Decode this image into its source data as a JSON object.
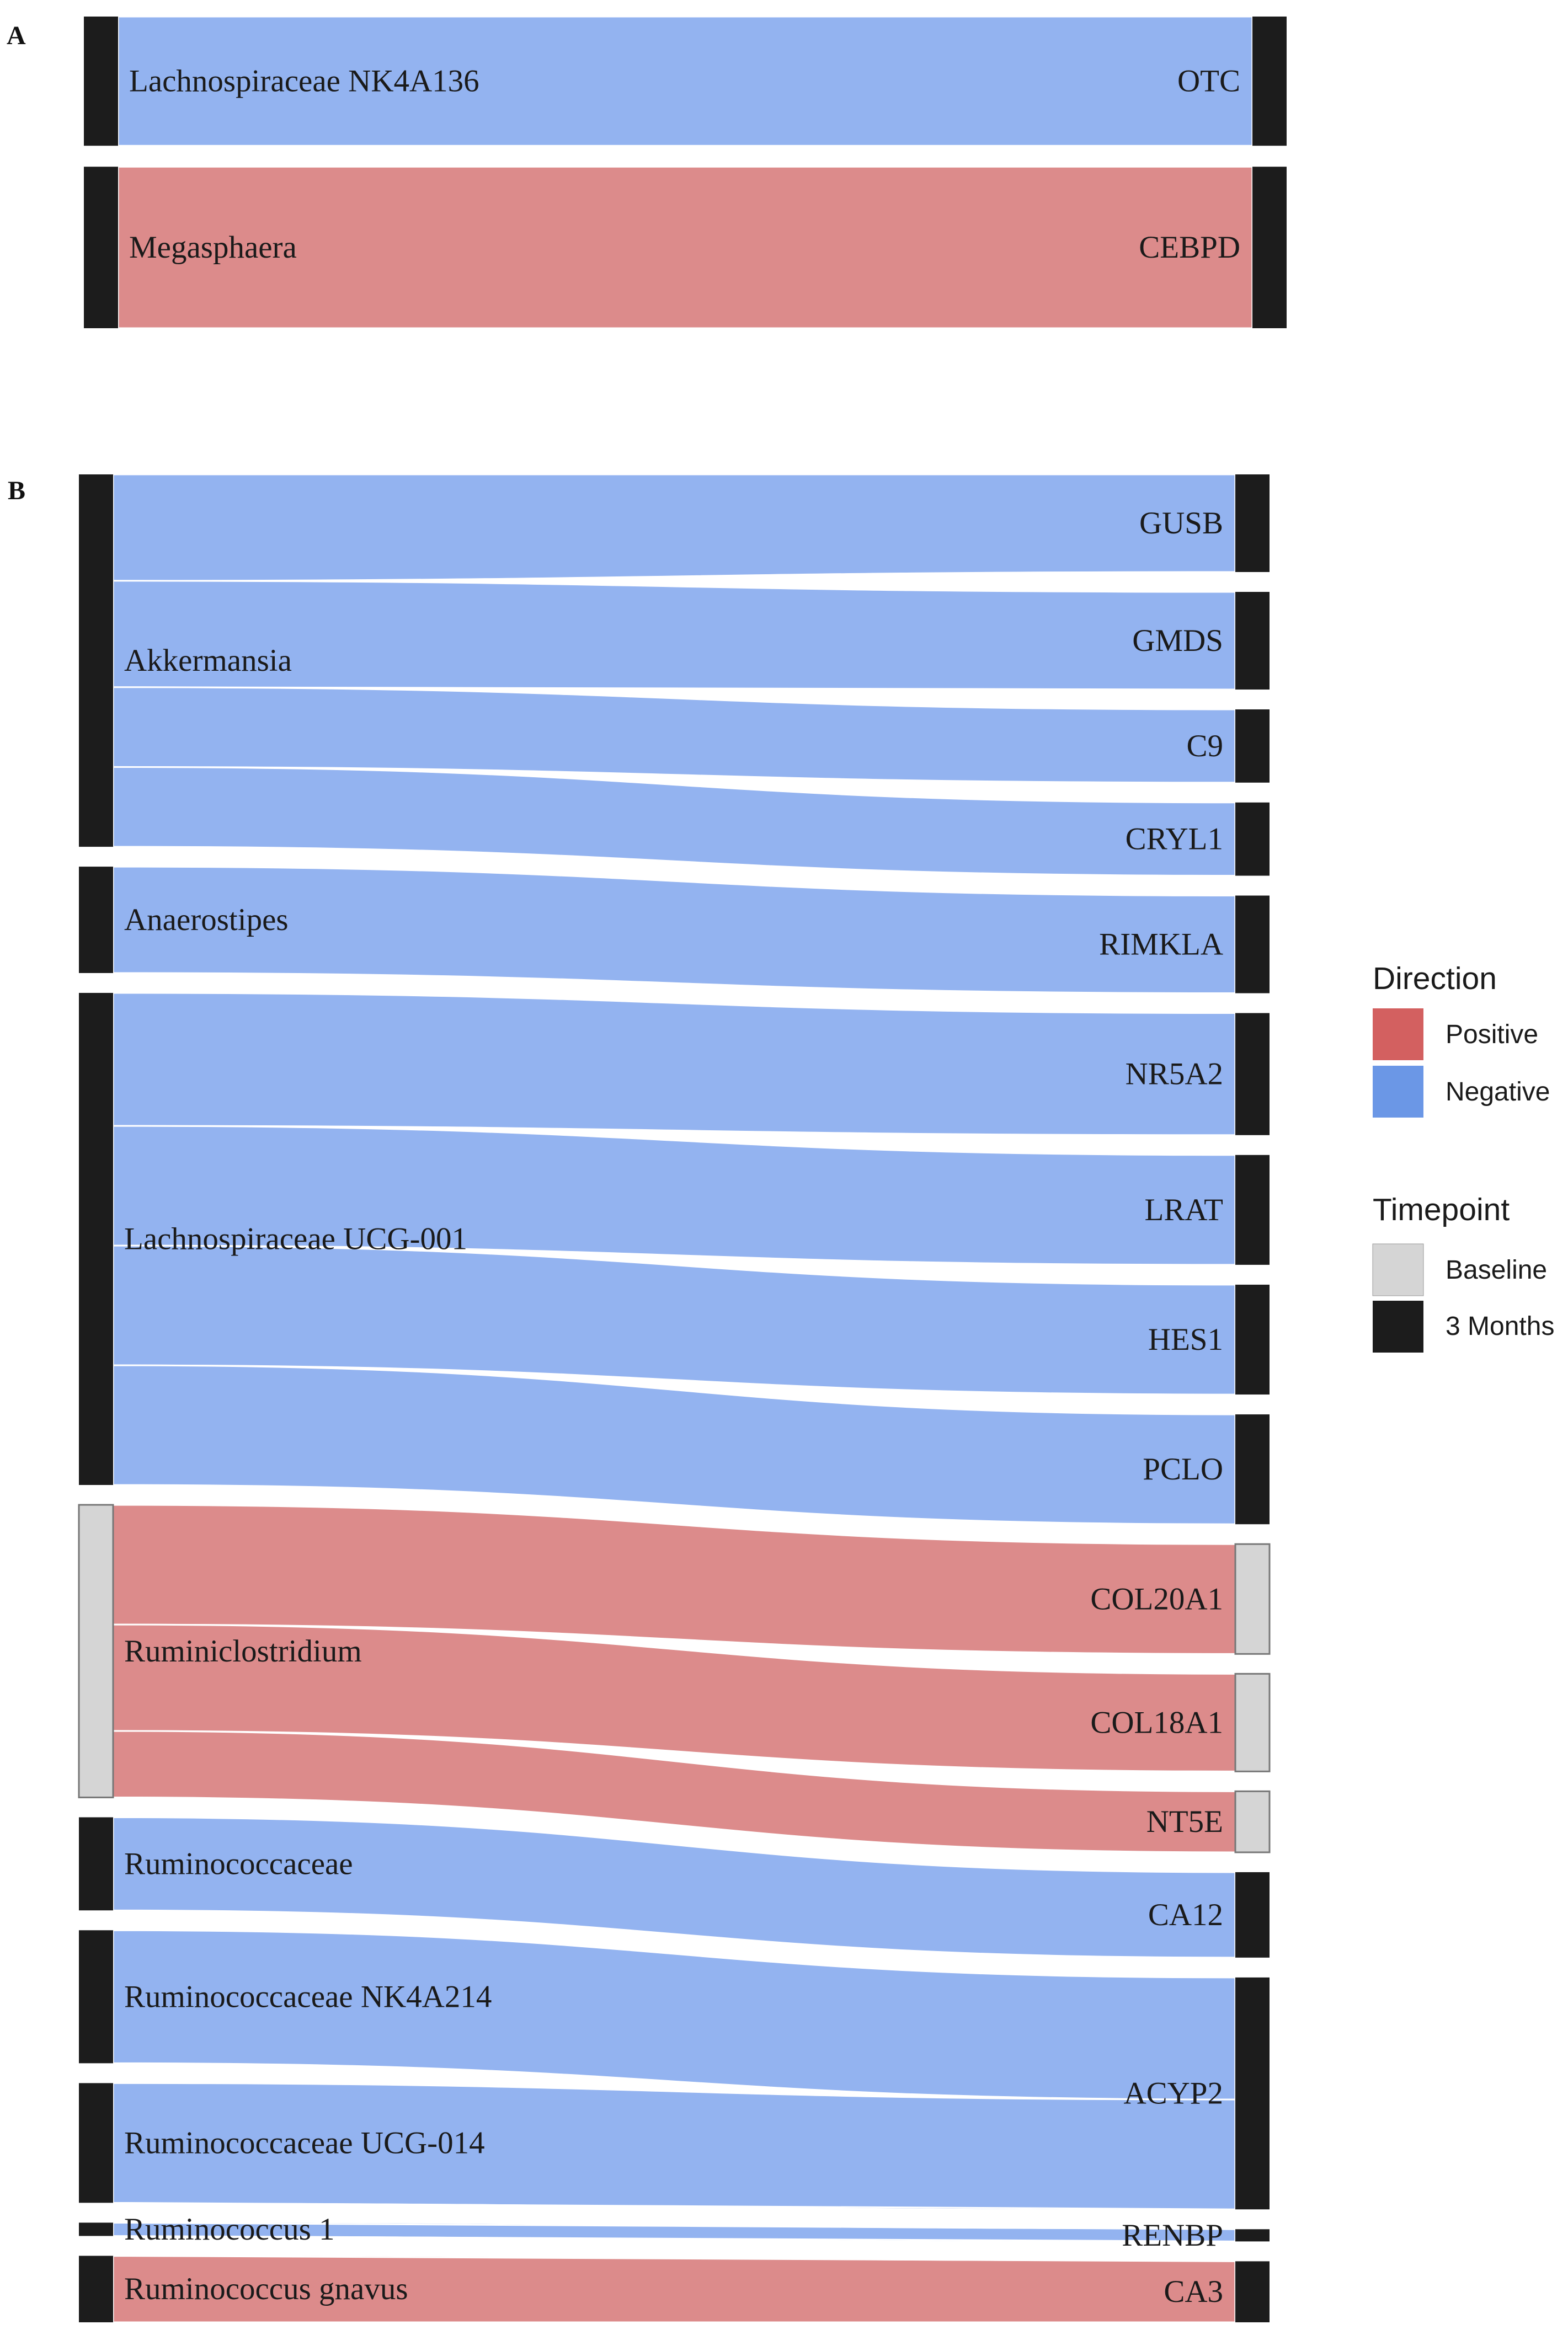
{
  "colors": {
    "positive_flow": "#dc8b8b",
    "negative_flow": "#93b3f0",
    "positive_key": "#d36060",
    "negative_key": "#6b97e6",
    "baseline": "#d5d5d5",
    "three_months": "#1c1c1c"
  },
  "legend": {
    "direction_title": "Direction",
    "positive": "Positive",
    "negative": "Negative",
    "timepoint_title": "Timepoint",
    "baseline": "Baseline",
    "three_months": "3 Months"
  },
  "chart_data": [
    {
      "type": "sankey",
      "panel": "A",
      "left_nodes": [
        {
          "id": "lnk",
          "label": "Lachnospiraceae NK4A136",
          "timepoint": "3 Months"
        },
        {
          "id": "meg",
          "label": "Megasphaera",
          "timepoint": "3 Months"
        }
      ],
      "right_nodes": [
        {
          "id": "otc",
          "label": "OTC",
          "timepoint": "3 Months"
        },
        {
          "id": "cebpd",
          "label": "CEBPD",
          "timepoint": "3 Months"
        }
      ],
      "links": [
        {
          "source": "lnk",
          "target": "otc",
          "direction": "Negative",
          "value": 4
        },
        {
          "source": "meg",
          "target": "cebpd",
          "direction": "Positive",
          "value": 5
        }
      ]
    },
    {
      "type": "sankey",
      "panel": "B",
      "left_nodes": [
        {
          "id": "akk",
          "label": "Akkermansia",
          "timepoint": "3 Months"
        },
        {
          "id": "ana",
          "label": "Anaerostipes",
          "timepoint": "3 Months"
        },
        {
          "id": "lucg",
          "label": "Lachnospiraceae UCG-001",
          "timepoint": "3 Months"
        },
        {
          "id": "rumcl",
          "label": "Ruminiclostridium",
          "timepoint": "Baseline"
        },
        {
          "id": "rum",
          "label": "Ruminococcaceae",
          "timepoint": "3 Months"
        },
        {
          "id": "rnk",
          "label": "Ruminococcaceae NK4A214",
          "timepoint": "3 Months"
        },
        {
          "id": "rucg",
          "label": "Ruminococcaceae UCG-014",
          "timepoint": "3 Months"
        },
        {
          "id": "r1",
          "label": "Ruminococcus 1",
          "timepoint": "3 Months"
        },
        {
          "id": "rg",
          "label": "Ruminococcus gnavus",
          "timepoint": "3 Months"
        }
      ],
      "right_nodes": [
        {
          "id": "gusb",
          "label": "GUSB",
          "timepoint": "3 Months"
        },
        {
          "id": "gmds",
          "label": "GMDS",
          "timepoint": "3 Months"
        },
        {
          "id": "c9",
          "label": "C9",
          "timepoint": "3 Months"
        },
        {
          "id": "cryl1",
          "label": "CRYL1",
          "timepoint": "3 Months"
        },
        {
          "id": "rimkla",
          "label": "RIMKLA",
          "timepoint": "3 Months"
        },
        {
          "id": "nr5a2",
          "label": "NR5A2",
          "timepoint": "3 Months"
        },
        {
          "id": "lrat",
          "label": "LRAT",
          "timepoint": "3 Months"
        },
        {
          "id": "hes1",
          "label": "HES1",
          "timepoint": "3 Months"
        },
        {
          "id": "pclo",
          "label": "PCLO",
          "timepoint": "3 Months"
        },
        {
          "id": "col20a1",
          "label": "COL20A1",
          "timepoint": "Baseline"
        },
        {
          "id": "col18a1",
          "label": "COL18A1",
          "timepoint": "Baseline"
        },
        {
          "id": "nt5e",
          "label": "NT5E",
          "timepoint": "Baseline"
        },
        {
          "id": "ca12",
          "label": "CA12",
          "timepoint": "3 Months"
        },
        {
          "id": "acyp2",
          "label": "ACYP2",
          "timepoint": "3 Months"
        },
        {
          "id": "renbp",
          "label": "RENBP",
          "timepoint": "3 Months"
        },
        {
          "id": "ca3",
          "label": "CA3",
          "timepoint": "3 Months"
        }
      ],
      "links": [
        {
          "source": "akk",
          "target": "gusb",
          "direction": "Negative",
          "value": 8
        },
        {
          "source": "akk",
          "target": "gmds",
          "direction": "Negative",
          "value": 8
        },
        {
          "source": "akk",
          "target": "c9",
          "direction": "Negative",
          "value": 6
        },
        {
          "source": "akk",
          "target": "cryl1",
          "direction": "Negative",
          "value": 6
        },
        {
          "source": "ana",
          "target": "rimkla",
          "direction": "Negative",
          "value": 8
        },
        {
          "source": "lucg",
          "target": "nr5a2",
          "direction": "Negative",
          "value": 10
        },
        {
          "source": "lucg",
          "target": "lrat",
          "direction": "Negative",
          "value": 9
        },
        {
          "source": "lucg",
          "target": "hes1",
          "direction": "Negative",
          "value": 9
        },
        {
          "source": "lucg",
          "target": "pclo",
          "direction": "Negative",
          "value": 9
        },
        {
          "source": "rumcl",
          "target": "col20a1",
          "direction": "Positive",
          "value": 9
        },
        {
          "source": "rumcl",
          "target": "col18a1",
          "direction": "Positive",
          "value": 8
        },
        {
          "source": "rumcl",
          "target": "nt5e",
          "direction": "Positive",
          "value": 5
        },
        {
          "source": "rum",
          "target": "ca12",
          "direction": "Negative",
          "value": 7
        },
        {
          "source": "rnk",
          "target": "acyp2",
          "direction": "Negative",
          "value": 10
        },
        {
          "source": "rucg",
          "target": "acyp2",
          "direction": "Negative",
          "value": 9
        },
        {
          "source": "r1",
          "target": "renbp",
          "direction": "Negative",
          "value": 1
        },
        {
          "source": "rg",
          "target": "ca3",
          "direction": "Positive",
          "value": 5
        }
      ]
    }
  ]
}
